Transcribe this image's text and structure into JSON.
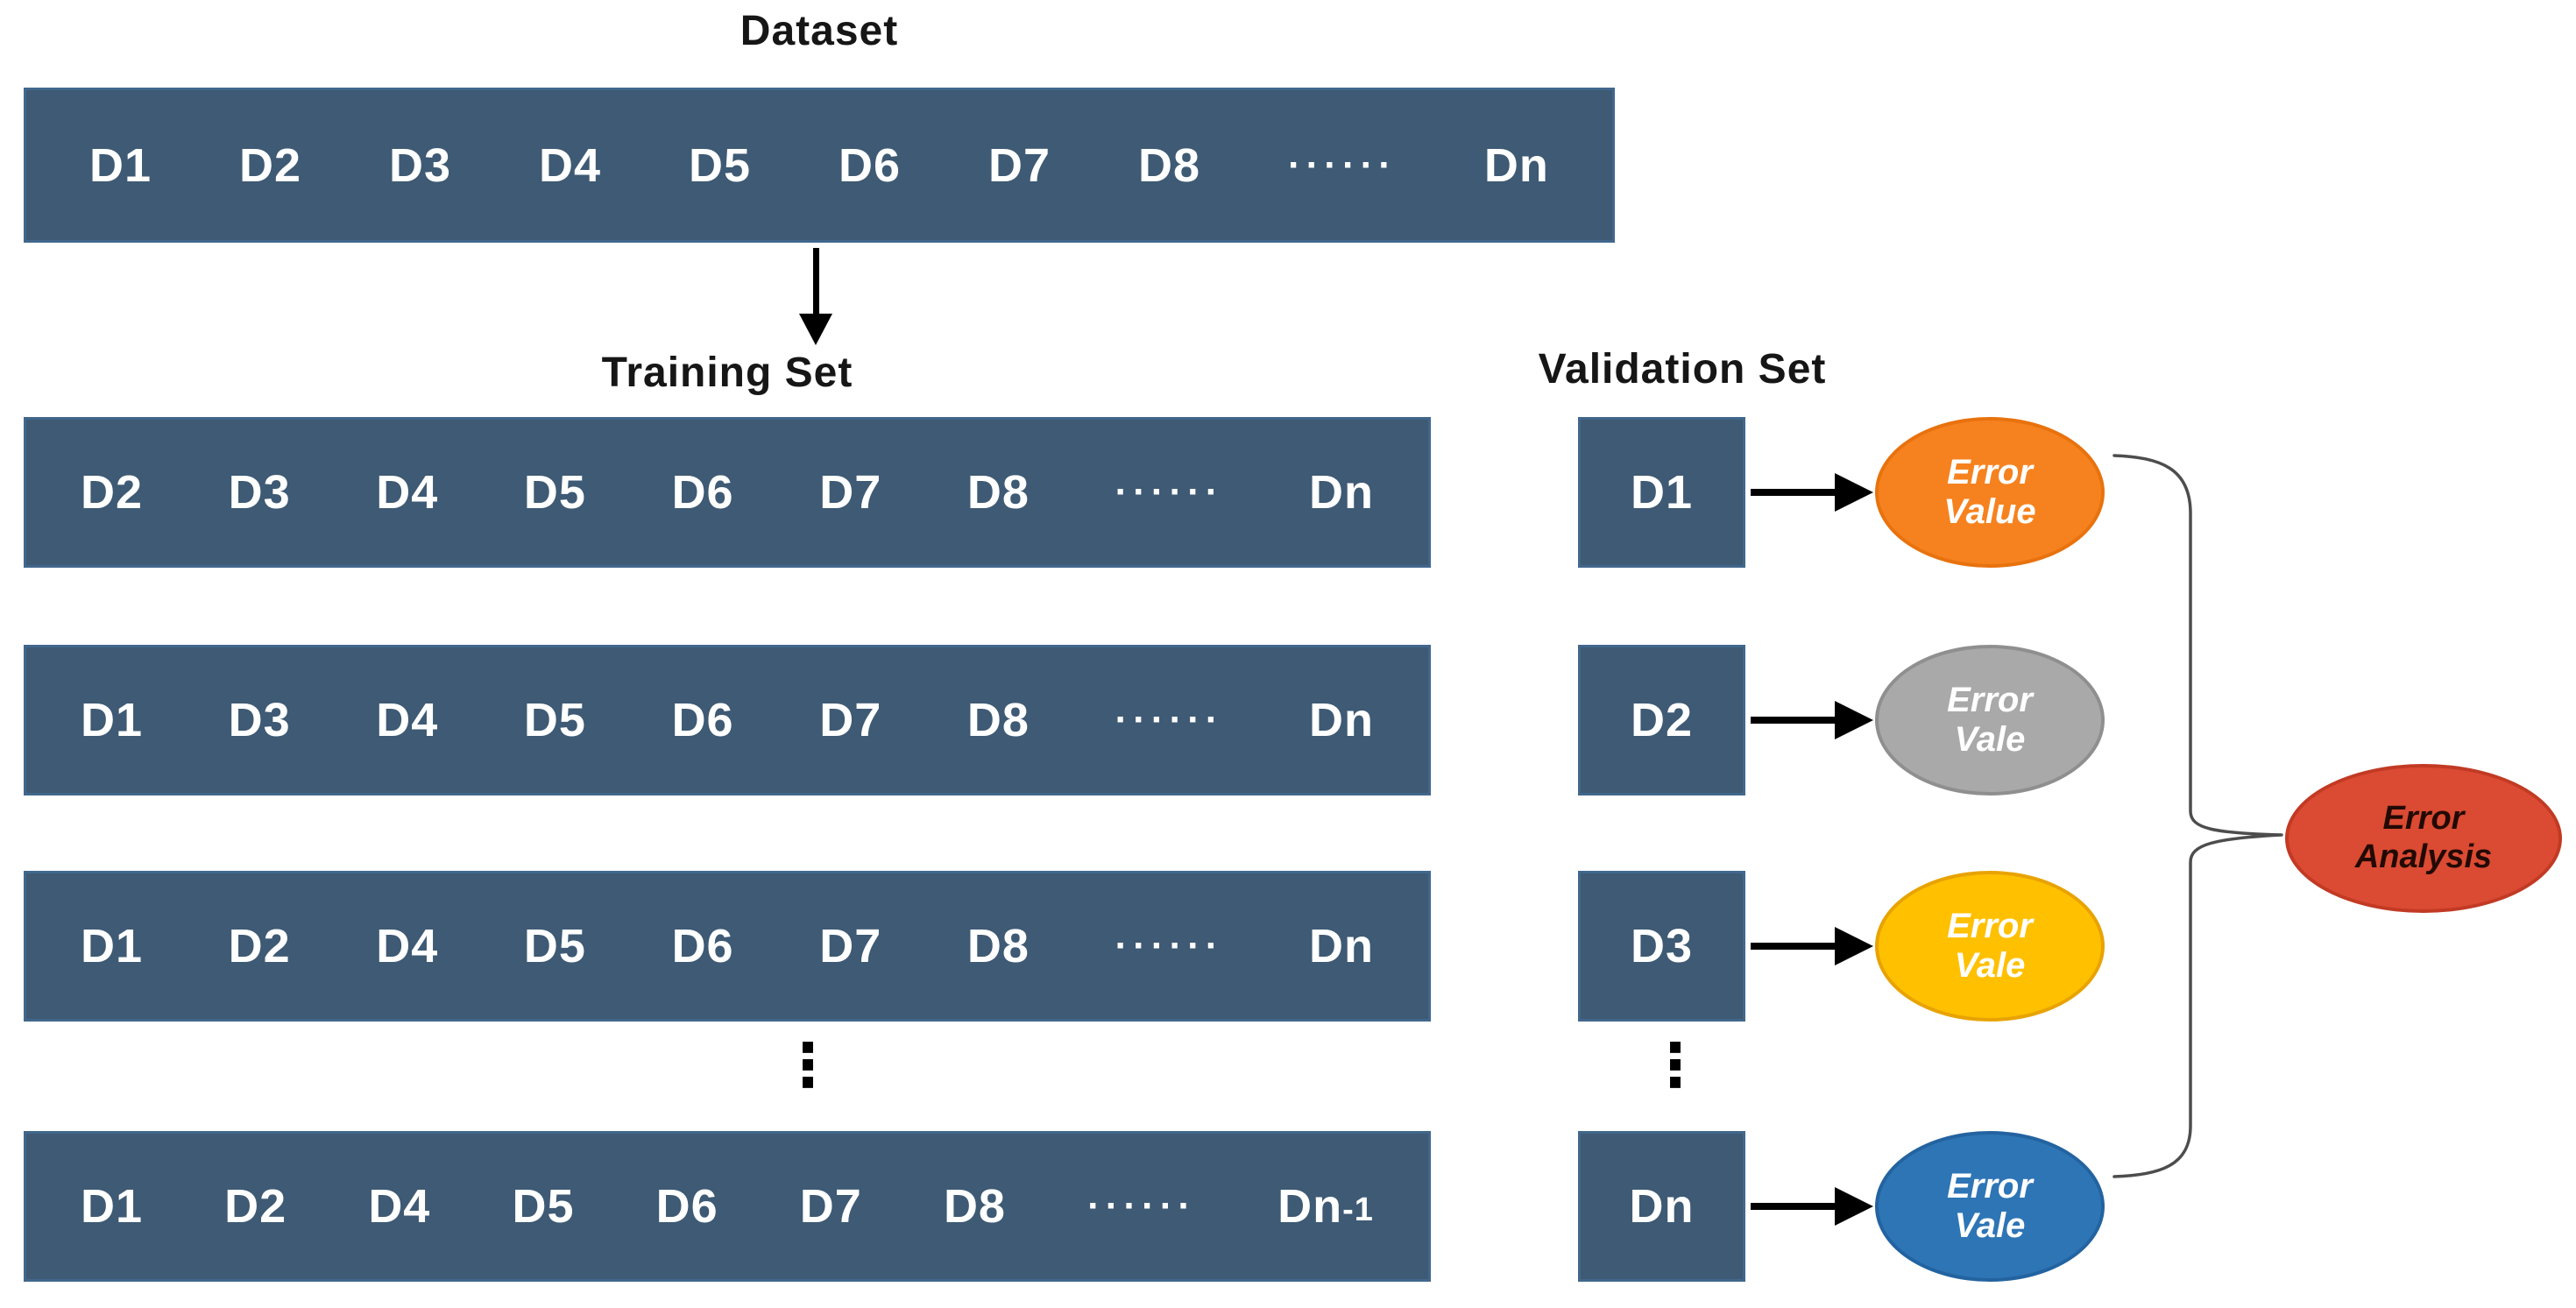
{
  "diagram": {
    "title": "Dataset",
    "training_title": "Training Set",
    "validation_title": "Validation Set",
    "vertical_ellipsis": "⋮",
    "dataset_items": [
      "D1",
      "D2",
      "D3",
      "D4",
      "D5",
      "D6",
      "D7",
      "D8",
      "······",
      "Dn"
    ],
    "folds": [
      {
        "training": [
          "D2",
          "D3",
          "D4",
          "D5",
          "D6",
          "D7",
          "D8",
          "······",
          "Dn"
        ],
        "validation": "D1",
        "error_ellipse": {
          "line1": "Error",
          "line2": "Value",
          "fill": "#F6821F",
          "border": "#E8720D",
          "text_color": "#FFFFFF"
        }
      },
      {
        "training": [
          "D1",
          "D3",
          "D4",
          "D5",
          "D6",
          "D7",
          "D8",
          "······",
          "Dn"
        ],
        "validation": "D2",
        "error_ellipse": {
          "line1": "Error",
          "line2": "Vale",
          "fill": "#A9A9A9",
          "border": "#8F8F8F",
          "text_color": "#FFFFFF"
        }
      },
      {
        "training": [
          "D1",
          "D2",
          "D4",
          "D5",
          "D6",
          "D7",
          "D8",
          "······",
          "Dn"
        ],
        "validation": "D3",
        "error_ellipse": {
          "line1": "Error",
          "line2": "Vale",
          "fill": "#FFC000",
          "border": "#E8A302",
          "text_color": "#FFFFFF"
        }
      },
      {
        "training": [
          "D1",
          "D2",
          "D4",
          "D5",
          "D6",
          "D7",
          "D8",
          "······",
          {
            "text": "Dn",
            "suffix": "-1"
          }
        ],
        "validation": "Dn",
        "error_ellipse": {
          "line1": "Error",
          "line2": "Vale",
          "fill": "#2E75B6",
          "border": "#2363A0",
          "text_color": "#FFFFFF"
        }
      }
    ],
    "error_analysis": {
      "line1": "Error",
      "line2": "Analysis",
      "fill": "#DB4A32",
      "border": "#C23A24",
      "text_color": "#220A04"
    },
    "colors": {
      "bar_fill": "#3E5A74",
      "bar_border": "#41678C",
      "bar_label": "#FFFFFF",
      "connector": "#4D4D4D",
      "arrow": "#000000"
    }
  }
}
